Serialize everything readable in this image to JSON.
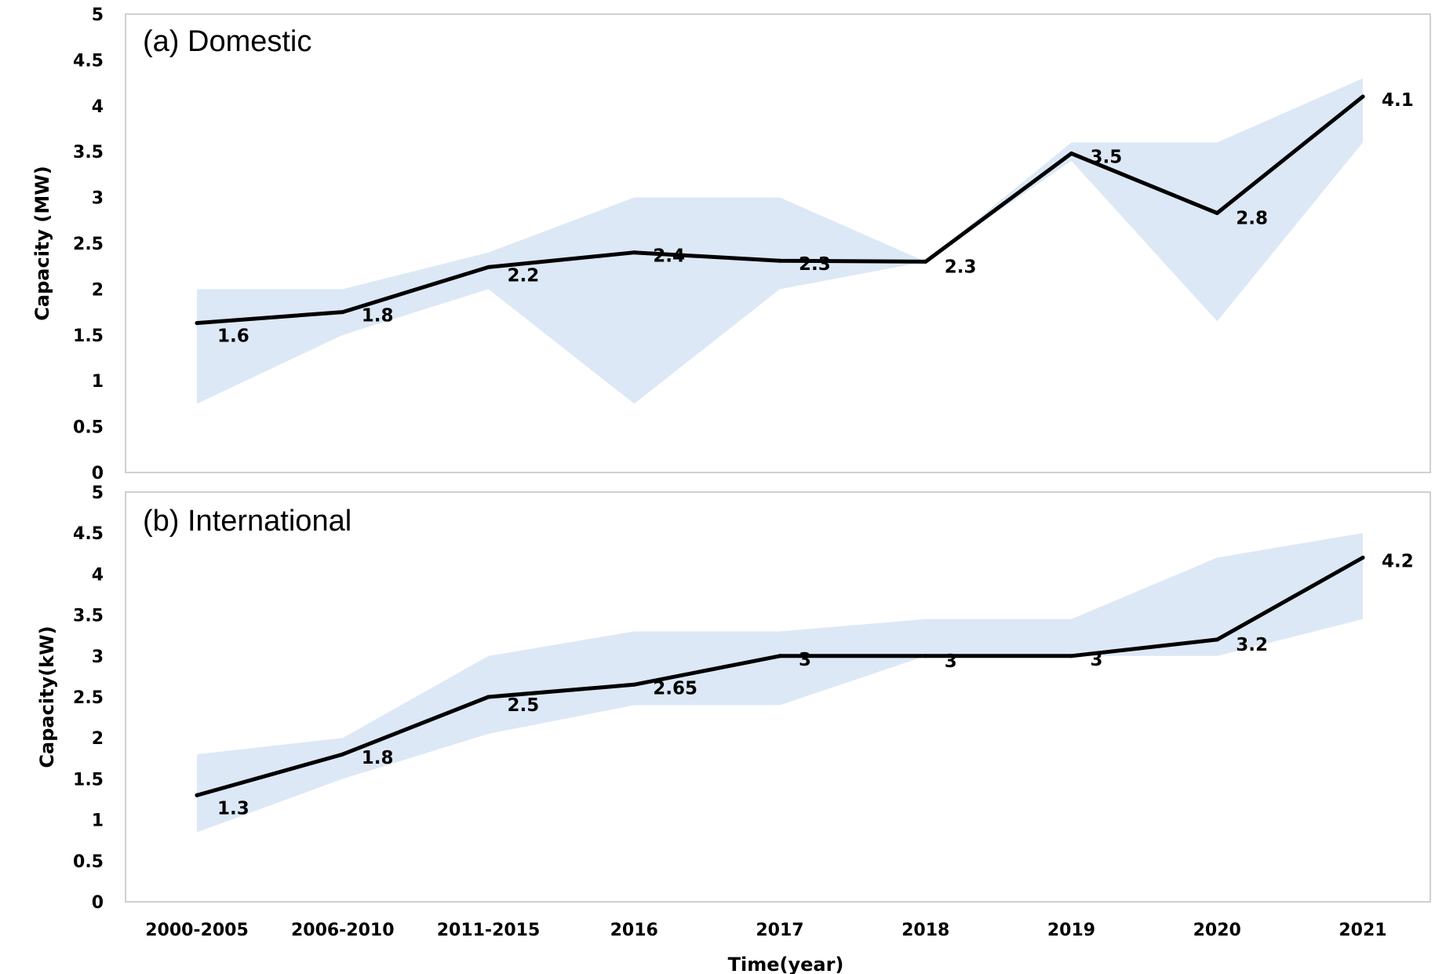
{
  "chart_data": [
    {
      "type": "line",
      "title": "(a) Domestic",
      "ylabel": "Capacity (MW)",
      "xlabel": "",
      "ylim": [
        0,
        5
      ],
      "yticks": [
        "0",
        "0.5",
        "1",
        "1.5",
        "2",
        "2.5",
        "3",
        "3.5",
        "4",
        "4.5",
        "5"
      ],
      "categories": [
        "2000-2005",
        "2006-2010",
        "2011-2015",
        "2016",
        "2017",
        "2018",
        "2019",
        "2020",
        "2021"
      ],
      "series": [
        {
          "values": [
            1.63,
            1.75,
            2.24,
            2.4,
            2.31,
            2.3,
            3.48,
            2.83,
            4.1
          ]
        }
      ],
      "data_labels": [
        "1.6",
        "1.8",
        "2.2",
        "2.4",
        "2.3",
        "2.3",
        "3.5",
        "2.8",
        "4.1"
      ],
      "band": {
        "upper": [
          2.0,
          2.0,
          2.4,
          3.0,
          3.0,
          2.3,
          3.6,
          3.6,
          4.3
        ],
        "lower": [
          0.75,
          1.5,
          2.0,
          0.75,
          2.0,
          2.3,
          3.4,
          1.65,
          3.6
        ]
      },
      "colors": {
        "line": "#000000",
        "band": "#dce8f6",
        "frame": "#d0d0d0"
      },
      "grid": false,
      "legend": "none"
    },
    {
      "type": "line",
      "title": "(b) International",
      "ylabel": "Capacity(kW)",
      "xlabel": "Time(year)",
      "ylim": [
        0,
        5
      ],
      "yticks": [
        "0",
        "0.5",
        "1",
        "1.5",
        "2",
        "2.5",
        "3",
        "3.5",
        "4",
        "4.5",
        "5"
      ],
      "categories": [
        "2000-2005",
        "2006-2010",
        "2011-2015",
        "2016",
        "2017",
        "2018",
        "2019",
        "2020",
        "2021"
      ],
      "series": [
        {
          "values": [
            1.3,
            1.8,
            2.5,
            2.65,
            3.0,
            3.0,
            3.0,
            3.2,
            4.2
          ]
        }
      ],
      "data_labels": [
        "1.3",
        "1.8",
        "2.5",
        "2.65",
        "3",
        "3",
        "3",
        "3.2",
        "4.2"
      ],
      "band": {
        "upper": [
          1.8,
          2.0,
          3.0,
          3.3,
          3.3,
          3.45,
          3.45,
          4.2,
          4.5
        ],
        "lower": [
          0.85,
          1.5,
          2.05,
          2.4,
          2.4,
          3.0,
          3.0,
          3.0,
          3.45
        ]
      },
      "colors": {
        "line": "#000000",
        "band": "#dce8f6",
        "frame": "#d0d0d0"
      },
      "grid": false,
      "legend": "none"
    }
  ]
}
